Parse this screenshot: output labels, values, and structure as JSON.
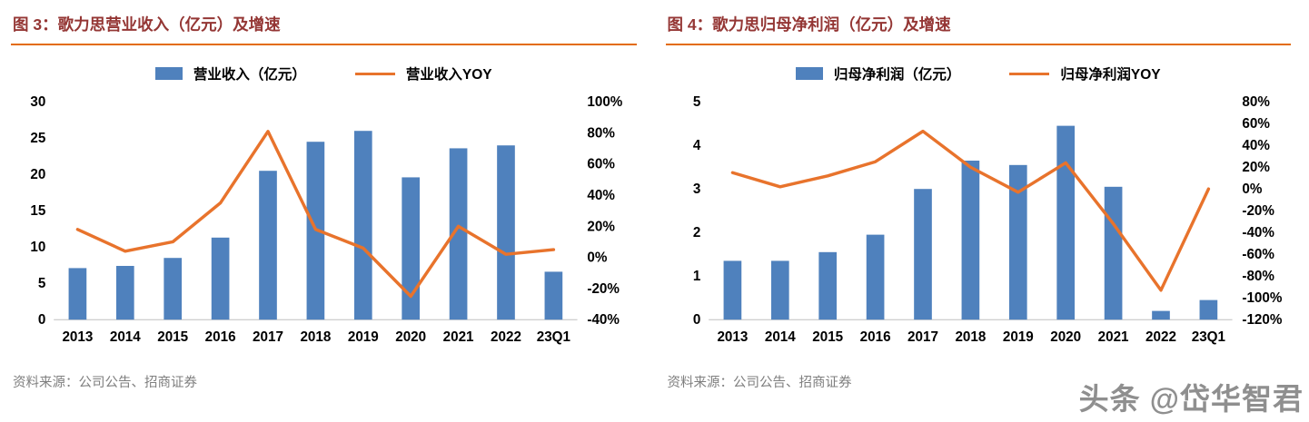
{
  "style": {
    "bar_color": "#4F81BD",
    "line_color": "#E8732C",
    "title_color": "#943634",
    "underline_color": "#E36C09",
    "source_color": "#7F7F7F",
    "axis_line_color": "#BFBFBF",
    "axis_text_color": "#000000"
  },
  "watermark": "头条 @岱华智君",
  "panels": [
    {
      "source": "资料来源：公司公告、招商证券"
    },
    {
      "source": "资料来源：公司公告、招商证券"
    }
  ],
  "chart_data": [
    {
      "type": "bar",
      "title": "图 3：歌力思营业收入（亿元）及增速",
      "categories": [
        "2013",
        "2014",
        "2015",
        "2016",
        "2017",
        "2018",
        "2019",
        "2020",
        "2021",
        "2022",
        "23Q1"
      ],
      "series": [
        {
          "name": "营业收入（亿元）",
          "type": "bar",
          "axis": "left",
          "values": [
            7.1,
            7.4,
            8.5,
            11.3,
            20.5,
            24.5,
            26.0,
            19.6,
            23.6,
            24.0,
            6.6
          ]
        },
        {
          "name": "营业收入YOY",
          "type": "line",
          "axis": "right",
          "values_pct": [
            18,
            4,
            10,
            35,
            81,
            18,
            6,
            -25,
            20,
            2,
            5
          ]
        }
      ],
      "left_axis": {
        "min": 0,
        "max": 30,
        "step": 5,
        "label": "营业收入（亿元）"
      },
      "right_axis": {
        "min": -40,
        "max": 100,
        "step": 20,
        "suffix": "%",
        "label": "营业收入YOY"
      },
      "grid": false,
      "legend_position": "top"
    },
    {
      "type": "bar",
      "title": "图 4：歌力思归母净利润（亿元）及增速",
      "categories": [
        "2013",
        "2014",
        "2015",
        "2016",
        "2017",
        "2018",
        "2019",
        "2020",
        "2021",
        "2022",
        "23Q1"
      ],
      "series": [
        {
          "name": "归母净利润（亿元）",
          "type": "bar",
          "axis": "left",
          "values": [
            1.35,
            1.35,
            1.55,
            1.95,
            3.0,
            3.65,
            3.55,
            4.45,
            3.05,
            0.2,
            0.45
          ]
        },
        {
          "name": "归母净利润YOY",
          "type": "line",
          "axis": "right",
          "values_pct": [
            15,
            2,
            12,
            25,
            53,
            20,
            -3,
            24,
            -32,
            -93,
            0
          ]
        }
      ],
      "left_axis": {
        "min": 0,
        "max": 5,
        "step": 1,
        "label": "归母净利润（亿元）"
      },
      "right_axis": {
        "min": -120,
        "max": 80,
        "step": 20,
        "suffix": "%",
        "label": "归母净利润YOY"
      },
      "grid": false,
      "legend_position": "top"
    }
  ]
}
